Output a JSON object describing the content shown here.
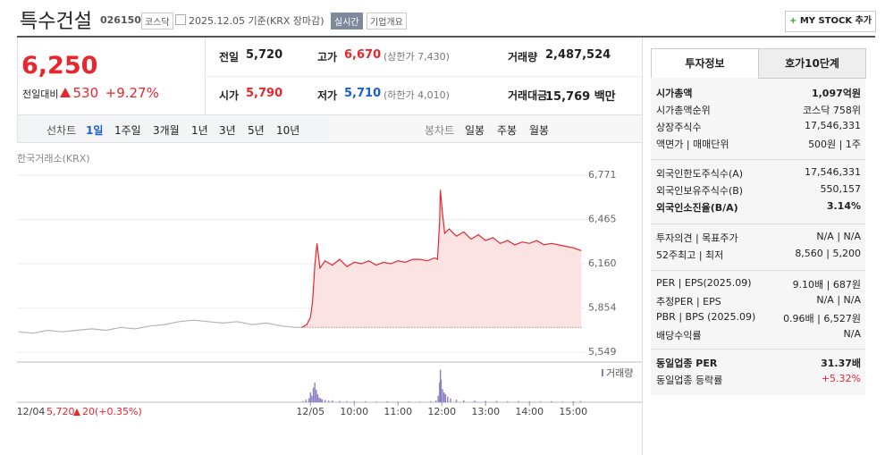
{
  "header": {
    "title": "특수건설",
    "code": "026150",
    "market": "코스닥",
    "date": "2025.12.05 기준(KRX 장마감)",
    "realtime": "실시간",
    "company": "기업개요",
    "mystock": "MY STOCK 추가"
  },
  "quote": {
    "price": "6,250",
    "change_label": "전일대비",
    "change": "530",
    "rate": "+9.27%",
    "cells": [
      {
        "label": "전일",
        "value": "5,720"
      },
      {
        "label": "고가",
        "value": "6,670",
        "extra": "(상한가 7,430)"
      },
      {
        "label": "거래량",
        "value": "2,487,524"
      },
      {
        "label": "시가",
        "value": "5,790"
      },
      {
        "label": "저가",
        "value": "5,710",
        "extra": "(하한가 4,010)"
      },
      {
        "label": "거래대금",
        "value": "15,769 백만"
      }
    ]
  },
  "periods": {
    "line_label": "선차트",
    "line": [
      "1일",
      "1주일",
      "3개월",
      "1년",
      "3년",
      "5년",
      "10년"
    ],
    "candle_label": "봉차트",
    "candle": [
      "일봉",
      "주봉",
      "월봉"
    ]
  },
  "chart_data": {
    "type": "line",
    "subtitle": "한국거래소(KRX)",
    "xlim": [
      -402,
      454
    ],
    "xticks": [
      {
        "value": -383,
        "label": "12/04"
      },
      {
        "value": 0,
        "label": "12/05"
      },
      {
        "value": 60,
        "label": "10:00"
      },
      {
        "value": 120,
        "label": "11:00"
      },
      {
        "value": 180,
        "label": "12:00"
      },
      {
        "value": 240,
        "label": "13:00"
      },
      {
        "value": 300,
        "label": "14:00"
      },
      {
        "value": 360,
        "label": "15:00"
      }
    ],
    "ylim": [
      5549,
      6771
    ],
    "yticks": [
      {
        "value": 6771,
        "label": "6,771"
      },
      {
        "value": 6465,
        "label": "6,465"
      },
      {
        "value": 6160,
        "label": "6,160"
      },
      {
        "value": 5854,
        "label": "5,854"
      },
      {
        "value": 5549,
        "label": "5,549"
      }
    ],
    "grid": true,
    "baseline": 5720,
    "series": [
      {
        "color": "#b5b5b5",
        "x": [
          -400,
          -380,
          -360,
          -340,
          -320,
          -300,
          -280,
          -260,
          -240,
          -220,
          -200,
          -180,
          -160,
          -140,
          -120,
          -100,
          -80,
          -60,
          -40,
          -20,
          -12
        ],
        "values": [
          5690,
          5680,
          5700,
          5690,
          5700,
          5710,
          5700,
          5720,
          5710,
          5730,
          5740,
          5760,
          5770,
          5760,
          5750,
          5760,
          5740,
          5750,
          5730,
          5720,
          5720
        ]
      },
      {
        "color": "#e8262d",
        "fill": "#fbe3e4",
        "x": [
          -12,
          -5,
          0,
          3,
          6,
          9,
          13,
          20,
          30,
          40,
          50,
          60,
          70,
          80,
          90,
          100,
          110,
          120,
          130,
          140,
          150,
          160,
          170,
          174,
          177,
          178,
          181,
          184,
          190,
          200,
          210,
          220,
          230,
          240,
          250,
          260,
          270,
          280,
          290,
          300,
          310,
          320,
          330,
          340,
          350,
          360,
          371
        ],
        "values": [
          5720,
          5740,
          5790,
          5900,
          6150,
          6300,
          6130,
          6180,
          6150,
          6190,
          6140,
          6170,
          6160,
          6180,
          6150,
          6170,
          6160,
          6180,
          6170,
          6190,
          6190,
          6180,
          6200,
          6190,
          6450,
          6670,
          6500,
          6370,
          6400,
          6350,
          6380,
          6330,
          6360,
          6320,
          6340,
          6300,
          6320,
          6290,
          6310,
          6300,
          6320,
          6290,
          6300,
          6290,
          6280,
          6270,
          6250
        ]
      }
    ],
    "volume": {
      "label": "거래량",
      "color": "#8e7cc3",
      "ylim": [
        0,
        110000
      ],
      "x": [
        -10,
        -6,
        -2,
        0,
        2,
        4,
        6,
        8,
        10,
        12,
        14,
        16,
        20,
        25,
        30,
        40,
        50,
        60,
        75,
        90,
        105,
        120,
        135,
        150,
        165,
        172,
        175,
        177,
        178,
        179,
        181,
        183,
        185,
        188,
        192,
        200,
        210,
        225,
        240,
        255,
        270,
        285,
        300,
        315,
        330,
        345,
        360,
        370
      ],
      "values": [
        3000,
        8000,
        12000,
        30000,
        20000,
        45000,
        60000,
        38000,
        25000,
        15000,
        12000,
        9000,
        7000,
        5000,
        6000,
        4000,
        3000,
        3500,
        3000,
        2500,
        3000,
        2000,
        2500,
        2000,
        3000,
        5000,
        20000,
        60000,
        100000,
        70000,
        40000,
        30000,
        25000,
        18000,
        12000,
        8000,
        6000,
        5000,
        4000,
        4000,
        3000,
        3500,
        3000,
        2500,
        3000,
        2500,
        3000,
        4000
      ]
    },
    "footer": {
      "price": "5,720",
      "change": "20",
      "rate": "(+0.35%)"
    }
  },
  "info": {
    "tabs": [
      "투자정보",
      "호가10단계"
    ],
    "groups": [
      [
        {
          "label": "시가총액",
          "value": "1,097억원"
        },
        {
          "label": "시가총액순위",
          "value": "코스닥 758위"
        },
        {
          "label": "상장주식수",
          "value": "17,546,331"
        },
        {
          "label": "액면가 | 매매단위",
          "value": "500원 | 1주"
        }
      ],
      [
        {
          "label": "외국인한도주식수(A)",
          "value": "17,546,331"
        },
        {
          "label": "외국인보유주식수(B)",
          "value": "550,157"
        },
        {
          "label": "외국인소진율(B/A)",
          "value": "3.14%"
        }
      ],
      [
        {
          "label": "투자의견 | 목표주가",
          "value": "N/A | N/A"
        },
        {
          "label": "52주최고 | 최저",
          "value": "8,560 | 5,200"
        }
      ],
      [
        {
          "label": "PER | EPS(2025.09)",
          "value": "9.10배 | 687원"
        },
        {
          "label": "추정PER | EPS",
          "value": "N/A | N/A"
        },
        {
          "label": "PBR | BPS (2025.09)",
          "value": "0.96배 | 6,527원"
        },
        {
          "label": "배당수익률",
          "value": "N/A"
        }
      ],
      [
        {
          "label": "동일업종 PER",
          "value": "31.37배"
        },
        {
          "label": "동일업종 등락률",
          "value": "+5.32%"
        }
      ]
    ]
  }
}
